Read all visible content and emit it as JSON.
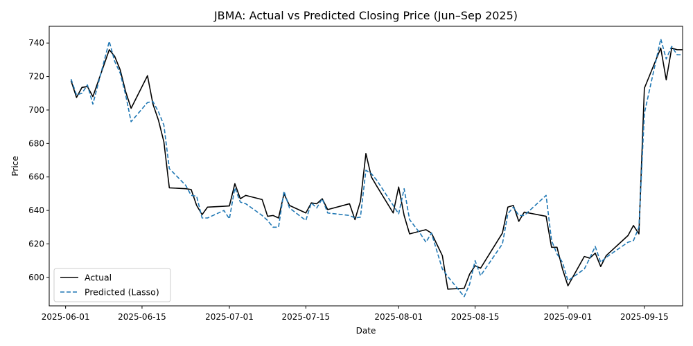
{
  "chart_data": {
    "type": "line",
    "title": "JBMA: Actual vs Predicted Closing Price (Jun–Sep 2025)",
    "xlabel": "Date",
    "ylabel": "Price",
    "xlim": [
      "2025-05-29",
      "2025-09-22"
    ],
    "ylim": [
      583,
      750
    ],
    "x_ticks": [
      "2025-06-01",
      "2025-06-15",
      "2025-07-01",
      "2025-07-15",
      "2025-08-01",
      "2025-08-15",
      "2025-09-01",
      "2025-09-15"
    ],
    "y_ticks": [
      600,
      620,
      640,
      660,
      680,
      700,
      720,
      740
    ],
    "grid": false,
    "legend_position": "lower-left",
    "series": [
      {
        "name": "Actual",
        "color": "#000000",
        "style": "solid",
        "points": [
          [
            "2025-06-02",
            717.5
          ],
          [
            "2025-06-03",
            707.5
          ],
          [
            "2025-06-04",
            713.5
          ],
          [
            "2025-06-05",
            714.0
          ],
          [
            "2025-06-06",
            708.0
          ],
          [
            "2025-06-09",
            736.0
          ],
          [
            "2025-06-10",
            732.0
          ],
          [
            "2025-06-11",
            724.0
          ],
          [
            "2025-06-12",
            711.0
          ],
          [
            "2025-06-13",
            701.0
          ],
          [
            "2025-06-16",
            720.5
          ],
          [
            "2025-06-17",
            703.5
          ],
          [
            "2025-06-18",
            694.0
          ],
          [
            "2025-06-19",
            681.0
          ],
          [
            "2025-06-20",
            653.5
          ],
          [
            "2025-06-23",
            653.0
          ],
          [
            "2025-06-24",
            652.5
          ],
          [
            "2025-06-25",
            643.0
          ],
          [
            "2025-06-26",
            637.5
          ],
          [
            "2025-06-27",
            642.0
          ],
          [
            "2025-06-30",
            642.5
          ],
          [
            "2025-07-01",
            642.7
          ],
          [
            "2025-07-02",
            656.0
          ],
          [
            "2025-07-03",
            647.0
          ],
          [
            "2025-07-04",
            649.0
          ],
          [
            "2025-07-07",
            646.5
          ],
          [
            "2025-07-08",
            636.5
          ],
          [
            "2025-07-09",
            637.0
          ],
          [
            "2025-07-10",
            635.5
          ],
          [
            "2025-07-11",
            650.0
          ],
          [
            "2025-07-12",
            643.0
          ],
          [
            "2025-07-15",
            638.5
          ],
          [
            "2025-07-16",
            644.5
          ],
          [
            "2025-07-17",
            644.0
          ],
          [
            "2025-07-18",
            647.0
          ],
          [
            "2025-07-19",
            640.5
          ],
          [
            "2025-07-23",
            644.0
          ],
          [
            "2025-07-24",
            634.5
          ],
          [
            "2025-07-25",
            645.5
          ],
          [
            "2025-07-26",
            674.0
          ],
          [
            "2025-07-27",
            660.0
          ],
          [
            "2025-07-28",
            654.5
          ],
          [
            "2025-07-31",
            638.5
          ],
          [
            "2025-08-01",
            654.0
          ],
          [
            "2025-08-02",
            637.0
          ],
          [
            "2025-08-03",
            626.0
          ],
          [
            "2025-08-05",
            627.7
          ],
          [
            "2025-08-06",
            628.5
          ],
          [
            "2025-08-07",
            626.5
          ],
          [
            "2025-08-09",
            613.0
          ],
          [
            "2025-08-10",
            593.0
          ],
          [
            "2025-08-13",
            593.5
          ],
          [
            "2025-08-14",
            602.0
          ],
          [
            "2025-08-15",
            607.0
          ],
          [
            "2025-08-16",
            605.5
          ],
          [
            "2025-08-20",
            626.5
          ],
          [
            "2025-08-21",
            642.0
          ],
          [
            "2025-08-22",
            643.0
          ],
          [
            "2025-08-23",
            633.5
          ],
          [
            "2025-08-24",
            639.0
          ],
          [
            "2025-08-28",
            636.5
          ],
          [
            "2025-08-29",
            618.0
          ],
          [
            "2025-08-30",
            618.0
          ],
          [
            "2025-08-31",
            605.0
          ],
          [
            "2025-09-01",
            595.0
          ],
          [
            "2025-09-04",
            612.5
          ],
          [
            "2025-09-05",
            611.5
          ],
          [
            "2025-09-06",
            614.5
          ],
          [
            "2025-09-07",
            606.5
          ],
          [
            "2025-09-08",
            613.0
          ],
          [
            "2025-09-12",
            625.0
          ],
          [
            "2025-09-13",
            631.0
          ],
          [
            "2025-09-14",
            626.0
          ],
          [
            "2025-09-15",
            713.0
          ],
          [
            "2025-09-18",
            737.0
          ],
          [
            "2025-09-19",
            718.0
          ],
          [
            "2025-09-20",
            737.0
          ],
          [
            "2025-09-21",
            736.0
          ],
          [
            "2025-09-22",
            736.0
          ]
        ]
      },
      {
        "name": "Predicted (Lasso)",
        "color": "#1f77b4",
        "style": "dashed",
        "points": [
          [
            "2025-06-02",
            718.5
          ],
          [
            "2025-06-03",
            709.0
          ],
          [
            "2025-06-04",
            710.0
          ],
          [
            "2025-06-05",
            715.0
          ],
          [
            "2025-06-06",
            703.5
          ],
          [
            "2025-06-09",
            741.0
          ],
          [
            "2025-06-10",
            729.0
          ],
          [
            "2025-06-11",
            722.0
          ],
          [
            "2025-06-12",
            709.0
          ],
          [
            "2025-06-13",
            693.0
          ],
          [
            "2025-06-16",
            704.5
          ],
          [
            "2025-06-17",
            705.0
          ],
          [
            "2025-06-18",
            699.0
          ],
          [
            "2025-06-19",
            691.0
          ],
          [
            "2025-06-20",
            665.0
          ],
          [
            "2025-06-23",
            655.0
          ],
          [
            "2025-06-24",
            649.0
          ],
          [
            "2025-06-25",
            648.5
          ],
          [
            "2025-06-26",
            635.5
          ],
          [
            "2025-06-27",
            635.5
          ],
          [
            "2025-06-30",
            640.0
          ],
          [
            "2025-07-01",
            635.0
          ],
          [
            "2025-07-02",
            653.5
          ],
          [
            "2025-07-03",
            645.0
          ],
          [
            "2025-07-04",
            644.0
          ],
          [
            "2025-07-07",
            637.0
          ],
          [
            "2025-07-08",
            634.0
          ],
          [
            "2025-07-09",
            630.0
          ],
          [
            "2025-07-10",
            630.0
          ],
          [
            "2025-07-11",
            651.5
          ],
          [
            "2025-07-12",
            641.5
          ],
          [
            "2025-07-15",
            634.0
          ],
          [
            "2025-07-16",
            644.5
          ],
          [
            "2025-07-17",
            641.5
          ],
          [
            "2025-07-18",
            647.0
          ],
          [
            "2025-07-19",
            638.5
          ],
          [
            "2025-07-23",
            637.0
          ],
          [
            "2025-07-24",
            635.5
          ],
          [
            "2025-07-25",
            636.0
          ],
          [
            "2025-07-26",
            664.0
          ],
          [
            "2025-07-27",
            662.0
          ],
          [
            "2025-07-28",
            658.0
          ],
          [
            "2025-07-31",
            643.0
          ],
          [
            "2025-08-01",
            638.0
          ],
          [
            "2025-08-02",
            653.0
          ],
          [
            "2025-08-03",
            634.5
          ],
          [
            "2025-08-05",
            626.0
          ],
          [
            "2025-08-06",
            621.0
          ],
          [
            "2025-08-07",
            626.5
          ],
          [
            "2025-08-09",
            605.0
          ],
          [
            "2025-08-10",
            600.5
          ],
          [
            "2025-08-13",
            588.5
          ],
          [
            "2025-08-14",
            596.0
          ],
          [
            "2025-08-15",
            610.0
          ],
          [
            "2025-08-16",
            601.0
          ],
          [
            "2025-08-20",
            620.0
          ],
          [
            "2025-08-21",
            638.0
          ],
          [
            "2025-08-22",
            642.0
          ],
          [
            "2025-08-23",
            637.0
          ],
          [
            "2025-08-24",
            637.0
          ],
          [
            "2025-08-28",
            649.0
          ],
          [
            "2025-08-29",
            622.0
          ],
          [
            "2025-08-30",
            614.0
          ],
          [
            "2025-08-31",
            609.0
          ],
          [
            "2025-09-01",
            598.0
          ],
          [
            "2025-09-04",
            605.0
          ],
          [
            "2025-09-05",
            611.5
          ],
          [
            "2025-09-06",
            618.5
          ],
          [
            "2025-09-07",
            609.0
          ],
          [
            "2025-09-08",
            612.0
          ],
          [
            "2025-09-12",
            621.0
          ],
          [
            "2025-09-13",
            622.0
          ],
          [
            "2025-09-14",
            630.0
          ],
          [
            "2025-09-15",
            698.0
          ],
          [
            "2025-09-18",
            742.5
          ],
          [
            "2025-09-19",
            730.5
          ],
          [
            "2025-09-20",
            738.0
          ],
          [
            "2025-09-21",
            733.0
          ],
          [
            "2025-09-22",
            733.0
          ]
        ]
      }
    ]
  }
}
